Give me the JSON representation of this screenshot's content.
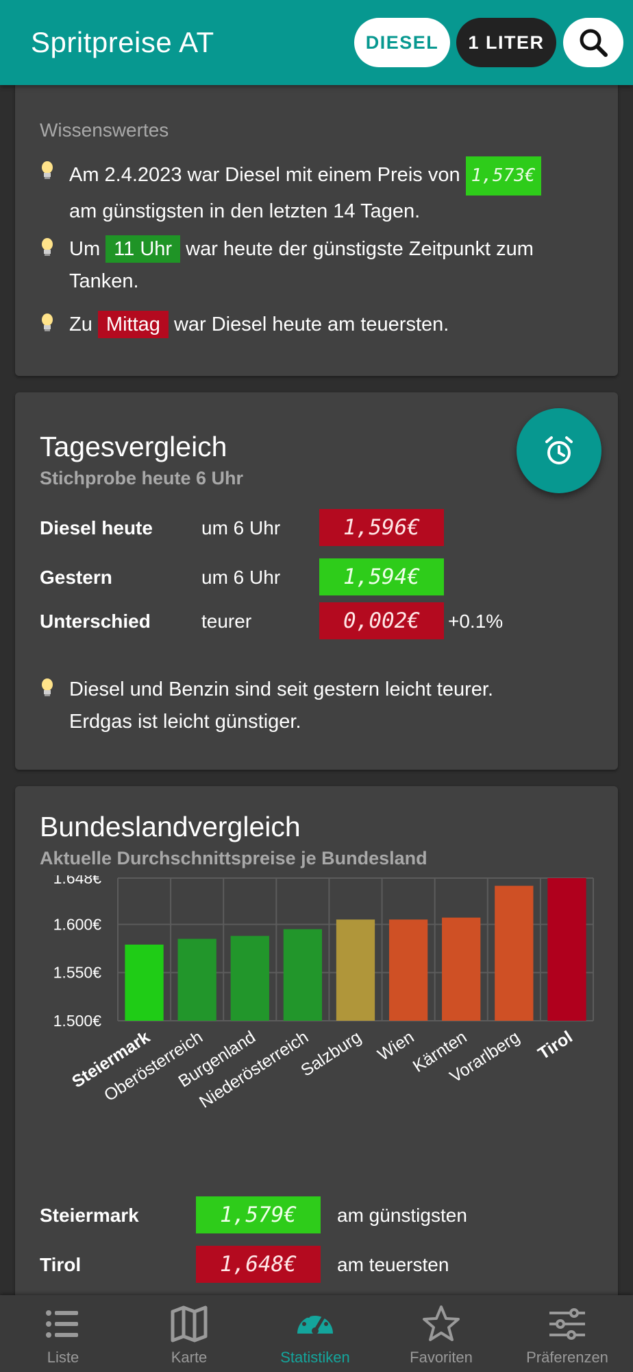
{
  "header": {
    "title": "Spritpreise AT",
    "fuel_label": "DIESEL",
    "quantity_label": "1 LITER",
    "search_icon": "search-icon"
  },
  "facts": {
    "heading": "Wissenswertes",
    "tip1_part1": "Am 2.4.2023 war Diesel mit einem Preis von",
    "tip1_price": "1,573€",
    "tip1_part2": "am günstigsten in den letzten 14 Tagen.",
    "tip2_part1": "Um",
    "tip2_highlight": "11 Uhr",
    "tip2_part2": "war heute der günstigste Zeitpunkt zum",
    "tip2_part3": "Tanken.",
    "tip3_part1": "Zu",
    "tip3_highlight": "Mittag",
    "tip3_part2": "war Diesel heute am teuersten."
  },
  "daily": {
    "title": "Tagesvergleich",
    "subtitle": "Stichprobe heute 6 Uhr",
    "alarm_icon": "alarm-clock-icon",
    "rows": [
      {
        "label": "Diesel heute",
        "time": "um 6 Uhr",
        "price": "1,596€",
        "color": "#b40a1f"
      },
      {
        "label": "Gestern",
        "time": "um 6 Uhr",
        "price": "1,594€",
        "color": "#2ecc1a"
      },
      {
        "label": "Unterschied",
        "time": "teurer",
        "price": "0,002€",
        "color": "#b40a1f",
        "extra": "+0.1%"
      }
    ],
    "tip_line1": "Diesel und Benzin sind seit gestern leicht teurer.",
    "tip_line2": "Erdgas ist leicht günstiger."
  },
  "states": {
    "title": "Bundeslandvergleich",
    "subtitle": "Aktuelle Durchschnittspreise je Bundesland",
    "cheapest_name": "Steiermark",
    "cheapest_price": "1,579€",
    "cheapest_text": "am günstigsten",
    "expensive_name": "Tirol",
    "expensive_price": "1,648€",
    "expensive_text": "am teuersten"
  },
  "chart_data": {
    "type": "bar",
    "title": "",
    "xlabel": "",
    "ylabel": "",
    "ylim": [
      1.5,
      1.648
    ],
    "y_ticks": [
      "1.648€",
      "1.600€",
      "1.550€",
      "1.500€"
    ],
    "y_tick_values": [
      1.648,
      1.6,
      1.55,
      1.5
    ],
    "grid": true,
    "categories": [
      "Steiermark",
      "Oberösterreich",
      "Burgenland",
      "Niederösterreich",
      "Salzburg",
      "Wien",
      "Kärnten",
      "Vorarlberg",
      "Tirol"
    ],
    "values": [
      1.579,
      1.585,
      1.588,
      1.595,
      1.605,
      1.605,
      1.607,
      1.64,
      1.648
    ],
    "bar_colors": [
      "#1fcc16",
      "#22962b",
      "#22962b",
      "#22962b",
      "#b0963a",
      "#cf5025",
      "#cf5025",
      "#cf5025",
      "#b0001d"
    ],
    "label_colors": [
      "#1fcc16",
      "#ffffff",
      "#ffffff",
      "#ffffff",
      "#ffffff",
      "#ffffff",
      "#ffffff",
      "#ffffff",
      "#c0001c"
    ]
  },
  "nav": {
    "items": [
      {
        "label": "Liste",
        "icon": "list-icon"
      },
      {
        "label": "Karte",
        "icon": "map-icon"
      },
      {
        "label": "Statistiken",
        "icon": "gauge-icon"
      },
      {
        "label": "Favoriten",
        "icon": "star-icon"
      },
      {
        "label": "Präferenzen",
        "icon": "sliders-icon"
      }
    ],
    "active_index": 2
  }
}
